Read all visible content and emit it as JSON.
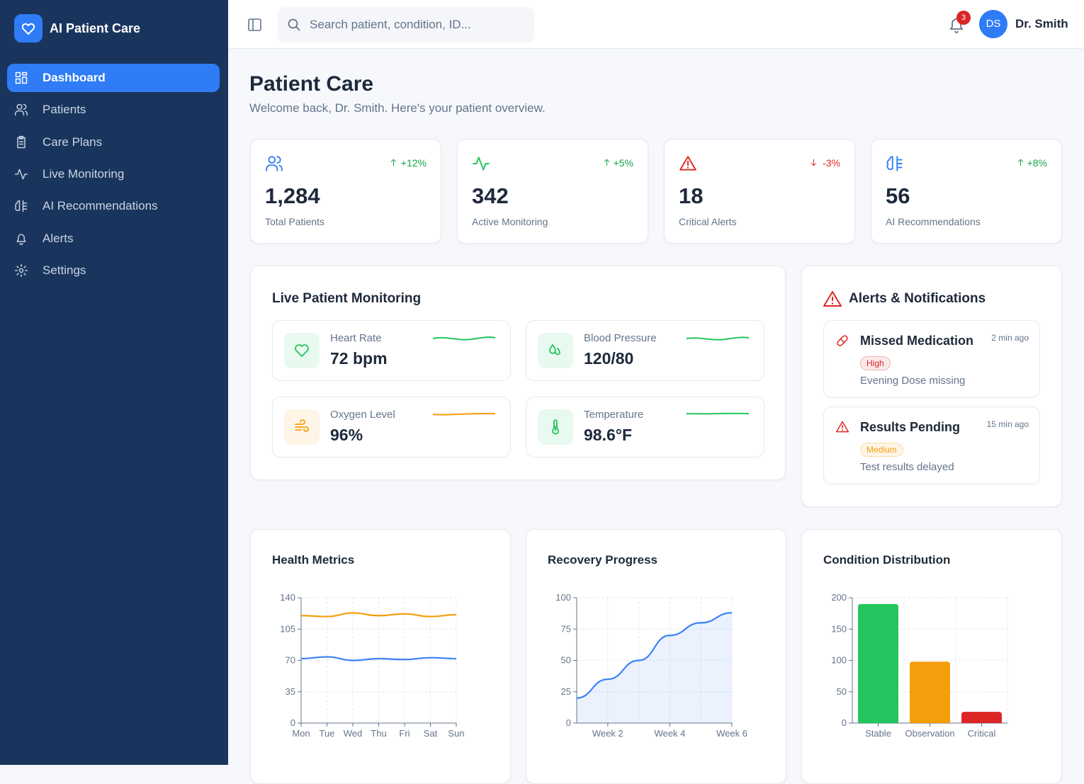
{
  "sidebar": {
    "brand": "AI Patient Care",
    "nav": [
      "Dashboard",
      "Patients",
      "Care Plans",
      "Live Monitoring",
      "AI Recommendations",
      "Alerts",
      "Settings"
    ],
    "active": 0
  },
  "header": {
    "search_placeholder": "Search patient, condition, ID...",
    "notifications": "3",
    "avatar": "DS",
    "user": "Dr. Smith"
  },
  "page": {
    "title": "Patient Care",
    "subtitle": "Welcome back, Dr. Smith. Here's your patient overview."
  },
  "stats": [
    {
      "value": "1,284",
      "label": "Total Patients",
      "change": "+12%",
      "direction": "up",
      "color": "#3b82f6"
    },
    {
      "value": "342",
      "label": "Active Monitoring",
      "change": "+5%",
      "direction": "up",
      "color": "#22c55e"
    },
    {
      "value": "18",
      "label": "Critical Alerts",
      "change": "-3%",
      "direction": "down",
      "color": "#dc2626"
    },
    {
      "value": "56",
      "label": "AI Recommendations",
      "change": "+8%",
      "direction": "up",
      "color": "#3b82f6"
    }
  ],
  "monitoring": {
    "title": "Live Patient Monitoring",
    "vitals": [
      {
        "label": "Heart Rate",
        "value": "72 bpm",
        "color": "#22c55e"
      },
      {
        "label": "Blood Pressure",
        "value": "120/80",
        "color": "#22c55e"
      },
      {
        "label": "Oxygen Level",
        "value": "96%",
        "color": "#f59e0b"
      },
      {
        "label": "Temperature",
        "value": "98.6°F",
        "color": "#22c55e"
      }
    ]
  },
  "alerts": {
    "title": "Alerts & Notifications",
    "items": [
      {
        "title": "Missed Medication",
        "time": "2 min ago",
        "priority": "High",
        "detail": "Evening Dose missing",
        "color": "#dc2626"
      },
      {
        "title": "Results Pending",
        "time": "15 min ago",
        "priority": "Medium",
        "detail": "Test results delayed",
        "color": "#f59e0b"
      }
    ]
  },
  "chart_data": [
    {
      "type": "line",
      "title": "Health Metrics",
      "categories": [
        "Mon",
        "Tue",
        "Wed",
        "Thu",
        "Fri",
        "Sat",
        "Sun"
      ],
      "series": [
        {
          "color": "#f59e0b",
          "values": [
            120,
            119,
            123,
            120,
            122,
            119,
            121
          ]
        },
        {
          "color": "#3b82f6",
          "values": [
            72,
            74,
            70,
            72,
            71,
            73,
            72
          ]
        }
      ],
      "ylim": [
        0,
        140
      ],
      "yticks": [
        0,
        35,
        70,
        105,
        140
      ],
      "grid": true
    },
    {
      "type": "area",
      "title": "Recovery Progress",
      "categories": [
        null,
        "Week 2",
        null,
        "Week 4",
        null,
        "Week 6"
      ],
      "values": [
        20,
        35,
        50,
        70,
        80,
        88
      ],
      "color": "#3b82f6",
      "ylim": [
        0,
        100
      ],
      "yticks": [
        0,
        25,
        50,
        75,
        100
      ],
      "grid": true
    },
    {
      "type": "bar",
      "title": "Condition Distribution",
      "categories": [
        "Stable",
        "Observation",
        "Critical"
      ],
      "values": [
        190,
        98,
        18
      ],
      "colors": [
        "#22c55e",
        "#f59e0b",
        "#dc2626"
      ],
      "ylim": [
        0,
        200
      ],
      "yticks": [
        0,
        50,
        100,
        150,
        200
      ],
      "grid": true
    }
  ]
}
